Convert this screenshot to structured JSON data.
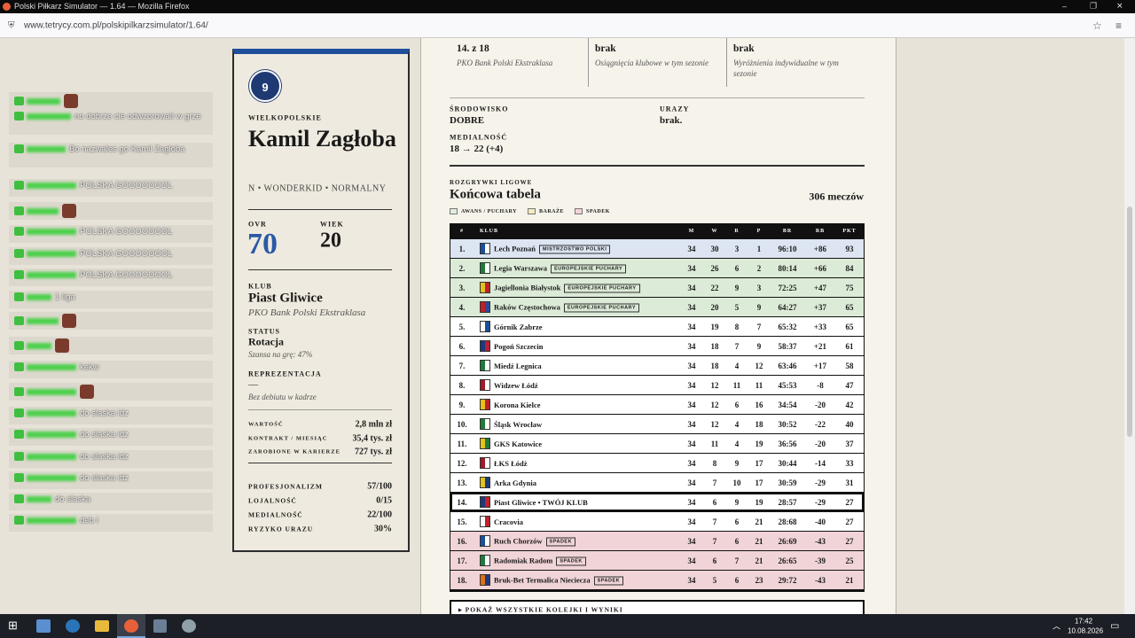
{
  "browser": {
    "title": "Polski Piłkarz Simulator — 1.64 — Mozilla Firefox",
    "url": "www.tetrycy.com.pl/polskipilkarzsimulator/1.64/"
  },
  "chat": {
    "messages": [
      "no dobrze cie odwzorowali w grze",
      "Bo nazwales go Kamil Zagłoba",
      "POLSKA GOOOOOOOL",
      "POLSKA GOOOOOOOL",
      "POLSKA GOOOOOOOL",
      "POLSKA GOOOOOOOL",
      "1 liga",
      "kekw",
      "do slaska idz",
      "do slaska idz",
      "do slaska idz",
      "do slaska idz",
      "do slaska",
      "deb i"
    ]
  },
  "player": {
    "number": "9",
    "region": "WIELKOPOLSKIE",
    "name": "Kamil Zagłoba",
    "tags": "N • WONDERKID • NORMALNY",
    "ovr_label": "OVR",
    "ovr": "70",
    "age_label": "WIEK",
    "age": "20",
    "club_label": "KLUB",
    "club": "Piast Gliwice",
    "league": "PKO Bank Polski Ekstraklasa",
    "status_label": "STATUS",
    "status": "Rotacja",
    "status_note": "Szansa na grę: 47%",
    "national_label": "REPREZENTACJA",
    "national": "—",
    "national_note": "Bez debiutu w kadrze",
    "finance": [
      [
        "WARTOŚĆ",
        "2,8 mln zł"
      ],
      [
        "KONTRAKT / MIESIĄC",
        "35,4 tys. zł"
      ],
      [
        "ZAROBIONE W KARIERZE",
        "727 tys. zł"
      ]
    ],
    "attributes": [
      [
        "PROFESJONALIZM",
        "57/100"
      ],
      [
        "LOJALNOŚĆ",
        "0/15"
      ],
      [
        "MEDIALNOŚĆ",
        "22/100"
      ],
      [
        "RYZYKO URAZU",
        "30%"
      ]
    ]
  },
  "season": {
    "summary": [
      [
        "14. z 18",
        "PKO Bank Polski Ekstraklasa"
      ],
      [
        "brak",
        "Osiągnięcia klubowe w tym sezonie"
      ],
      [
        "brak",
        "Wyróżnienia indywidualne w tym sezonie"
      ]
    ],
    "environment_label": "ŚRODOWISKO",
    "environment": "DOBRE",
    "injuries_label": "URAZY",
    "injuries": "brak.",
    "media_label": "MEDIALNOŚĆ",
    "media": "18 → 22 (+4)"
  },
  "table": {
    "kicker": "ROZGRYWKI LIGOWE",
    "title": "Końcowa tabela",
    "matches": "306 meczów",
    "legend": [
      {
        "label": "AWANS / PUCHARY",
        "color": "#e4ece0"
      },
      {
        "label": "BARAŻE",
        "color": "#f3ecc4"
      },
      {
        "label": "SPADEK",
        "color": "#f1d4d7"
      }
    ],
    "headers": [
      "#",
      "KLUB",
      "M",
      "W",
      "R",
      "P",
      "BR",
      "RB",
      "PKT"
    ],
    "rows": [
      {
        "pos": "1.",
        "club": "Lech Poznań",
        "badge": "MISTRZOSTWO POLSKI",
        "m": "34",
        "w": "30",
        "r": "3",
        "p": "1",
        "br": "96:10",
        "rb": "+86",
        "pkt": "93",
        "color": "#dce5f1",
        "crest": [
          "#1b4f9c",
          "#ffffff"
        ]
      },
      {
        "pos": "2.",
        "club": "Legia Warszawa",
        "badge": "EUROPEJSKIE PUCHARY",
        "m": "34",
        "w": "26",
        "r": "6",
        "p": "2",
        "br": "80:14",
        "rb": "+66",
        "pkt": "84",
        "color": "#dcebd7",
        "crest": [
          "#1f7a3a",
          "#ffffff"
        ]
      },
      {
        "pos": "3.",
        "club": "Jagiellonia Białystok",
        "badge": "EUROPEJSKIE PUCHARY",
        "m": "34",
        "w": "22",
        "r": "9",
        "p": "3",
        "br": "72:25",
        "rb": "+47",
        "pkt": "75",
        "color": "#dcebd7",
        "crest": [
          "#e3c21a",
          "#c0202a"
        ]
      },
      {
        "pos": "4.",
        "club": "Raków Częstochowa",
        "badge": "EUROPEJSKIE PUCHARY",
        "m": "34",
        "w": "20",
        "r": "5",
        "p": "9",
        "br": "64:27",
        "rb": "+37",
        "pkt": "65",
        "color": "#dcebd7",
        "crest": [
          "#c0202a",
          "#2a4a9a"
        ]
      },
      {
        "pos": "5.",
        "club": "Górnik Zabrze",
        "m": "34",
        "w": "19",
        "r": "8",
        "p": "7",
        "br": "65:32",
        "rb": "+33",
        "pkt": "65",
        "color": "#ffffff",
        "crest": [
          "#ffffff",
          "#1b4f9c"
        ]
      },
      {
        "pos": "6.",
        "club": "Pogoń Szczecin",
        "m": "34",
        "w": "18",
        "r": "7",
        "p": "9",
        "br": "58:37",
        "rb": "+21",
        "pkt": "61",
        "color": "#ffffff",
        "crest": [
          "#1d3a7a",
          "#b8203a"
        ]
      },
      {
        "pos": "7.",
        "club": "Miedź Legnica",
        "m": "34",
        "w": "18",
        "r": "4",
        "p": "12",
        "br": "63:46",
        "rb": "+17",
        "pkt": "58",
        "color": "#ffffff",
        "crest": [
          "#1f7a3a",
          "#ffffff"
        ]
      },
      {
        "pos": "8.",
        "club": "Widzew Łódź",
        "m": "34",
        "w": "12",
        "r": "11",
        "p": "11",
        "br": "45:53",
        "rb": "-8",
        "pkt": "47",
        "color": "#ffffff",
        "crest": [
          "#a01a2a",
          "#ffffff"
        ]
      },
      {
        "pos": "9.",
        "club": "Korona Kielce",
        "m": "34",
        "w": "12",
        "r": "6",
        "p": "16",
        "br": "34:54",
        "rb": "-20",
        "pkt": "42",
        "color": "#ffffff",
        "crest": [
          "#e3c21a",
          "#c0202a"
        ]
      },
      {
        "pos": "10.",
        "club": "Śląsk Wrocław",
        "m": "34",
        "w": "12",
        "r": "4",
        "p": "18",
        "br": "30:52",
        "rb": "-22",
        "pkt": "40",
        "color": "#ffffff",
        "crest": [
          "#1f7a3a",
          "#ffffff"
        ]
      },
      {
        "pos": "11.",
        "club": "GKS Katowice",
        "m": "34",
        "w": "11",
        "r": "4",
        "p": "19",
        "br": "36:56",
        "rb": "-20",
        "pkt": "37",
        "color": "#ffffff",
        "crest": [
          "#e3c21a",
          "#1f7a3a"
        ]
      },
      {
        "pos": "12.",
        "club": "ŁKS Łódź",
        "m": "34",
        "w": "8",
        "r": "9",
        "p": "17",
        "br": "30:44",
        "rb": "-14",
        "pkt": "33",
        "color": "#ffffff",
        "crest": [
          "#a01a2a",
          "#ffffff"
        ]
      },
      {
        "pos": "13.",
        "club": "Arka Gdynia",
        "m": "34",
        "w": "7",
        "r": "10",
        "p": "17",
        "br": "30:59",
        "rb": "-29",
        "pkt": "31",
        "color": "#ffffff",
        "crest": [
          "#e3c21a",
          "#1d3a7a"
        ]
      },
      {
        "pos": "14.",
        "club": "Piast Gliwice • TWÓJ KLUB",
        "m": "34",
        "w": "6",
        "r": "9",
        "p": "19",
        "br": "28:57",
        "rb": "-29",
        "pkt": "27",
        "color": "#ffffff",
        "border": "#111111",
        "crest": [
          "#1d3a7a",
          "#c0202a"
        ]
      },
      {
        "pos": "15.",
        "club": "Cracovia",
        "m": "34",
        "w": "7",
        "r": "6",
        "p": "21",
        "br": "28:68",
        "rb": "-40",
        "pkt": "27",
        "color": "#ffffff",
        "crest": [
          "#ffffff",
          "#c0202a"
        ]
      },
      {
        "pos": "16.",
        "club": "Ruch Chorzów",
        "badge": "SPADEK",
        "m": "34",
        "w": "7",
        "r": "6",
        "p": "21",
        "br": "26:69",
        "rb": "-43",
        "pkt": "27",
        "color": "#f1d4d7",
        "crest": [
          "#1b4f9c",
          "#ffffff"
        ]
      },
      {
        "pos": "17.",
        "club": "Radomiak Radom",
        "badge": "SPADEK",
        "m": "34",
        "w": "6",
        "r": "7",
        "p": "21",
        "br": "26:65",
        "rb": "-39",
        "pkt": "25",
        "color": "#f1d4d7",
        "crest": [
          "#1f7a3a",
          "#ffffff"
        ]
      },
      {
        "pos": "18.",
        "club": "Bruk-Bet Termalica Nieciecza",
        "badge": "SPADEK",
        "m": "34",
        "w": "5",
        "r": "6",
        "p": "23",
        "br": "29:72",
        "rb": "-43",
        "pkt": "21",
        "color": "#f1d4d7",
        "crest": [
          "#e0701a",
          "#1d3a7a"
        ]
      }
    ],
    "more": "▸ POKAŻ WSZYSTKIE KOLEJKI I WYNIKI"
  },
  "taskbar": {
    "time": "17:42",
    "date": "10.08.2026"
  }
}
